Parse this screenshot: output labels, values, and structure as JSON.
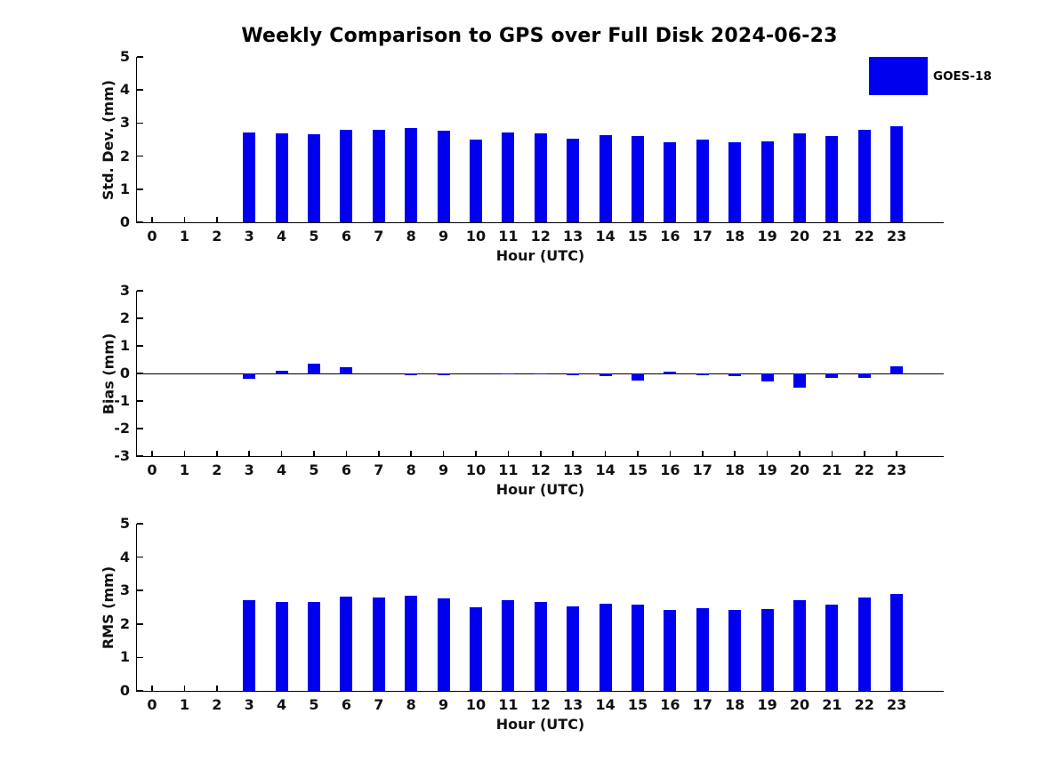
{
  "title": "Weekly Comparison to GPS over Full Disk 2024-06-23",
  "legend": {
    "label": "GOES-18",
    "color": "#0000EE",
    "position": "top-right"
  },
  "bar_color": "#0000EE",
  "text_color": "#111111",
  "chart_data": [
    {
      "type": "bar",
      "series_name": "GOES-18",
      "ylabel": "Std. Dev. (mm)",
      "xlabel": "Hour (UTC)",
      "ylim": [
        0,
        5
      ],
      "yticks": [
        0,
        1,
        2,
        3,
        4,
        5
      ],
      "grid": false,
      "zero_line": false,
      "categories": [
        "0",
        "1",
        "2",
        "3",
        "4",
        "5",
        "6",
        "7",
        "8",
        "9",
        "10",
        "11",
        "12",
        "13",
        "14",
        "15",
        "16",
        "17",
        "18",
        "19",
        "20",
        "21",
        "22",
        "23"
      ],
      "values": [
        null,
        null,
        null,
        2.71,
        2.69,
        2.66,
        2.8,
        2.79,
        2.85,
        2.77,
        2.51,
        2.71,
        2.69,
        2.54,
        2.63,
        2.6,
        2.43,
        2.49,
        2.43,
        2.44,
        2.68,
        2.6,
        2.8,
        2.91
      ]
    },
    {
      "type": "bar",
      "series_name": "GOES-18",
      "ylabel": "Bias (mm)",
      "xlabel": "Hour (UTC)",
      "ylim": [
        -3,
        3
      ],
      "yticks": [
        -3,
        -2,
        -1,
        0,
        1,
        2,
        3
      ],
      "grid": false,
      "zero_line": true,
      "categories": [
        "0",
        "1",
        "2",
        "3",
        "4",
        "5",
        "6",
        "7",
        "8",
        "9",
        "10",
        "11",
        "12",
        "13",
        "14",
        "15",
        "16",
        "17",
        "18",
        "19",
        "20",
        "21",
        "22",
        "23"
      ],
      "values": [
        null,
        null,
        null,
        -0.2,
        0.1,
        0.35,
        0.22,
        0.0,
        -0.06,
        -0.05,
        0.0,
        -0.04,
        -0.02,
        -0.05,
        -0.1,
        -0.25,
        0.06,
        -0.05,
        -0.11,
        -0.3,
        -0.5,
        -0.16,
        -0.16,
        0.25
      ]
    },
    {
      "type": "bar",
      "series_name": "GOES-18",
      "ylabel": "RMS (mm)",
      "xlabel": "Hour (UTC)",
      "ylim": [
        0,
        5
      ],
      "yticks": [
        0,
        1,
        2,
        3,
        4,
        5
      ],
      "grid": false,
      "zero_line": false,
      "categories": [
        "0",
        "1",
        "2",
        "3",
        "4",
        "5",
        "6",
        "7",
        "8",
        "9",
        "10",
        "11",
        "12",
        "13",
        "14",
        "15",
        "16",
        "17",
        "18",
        "19",
        "20",
        "21",
        "22",
        "23"
      ],
      "values": [
        null,
        null,
        null,
        2.7,
        2.67,
        2.67,
        2.81,
        2.78,
        2.85,
        2.76,
        2.5,
        2.7,
        2.67,
        2.52,
        2.6,
        2.58,
        2.42,
        2.47,
        2.42,
        2.44,
        2.7,
        2.57,
        2.78,
        2.89
      ]
    }
  ]
}
